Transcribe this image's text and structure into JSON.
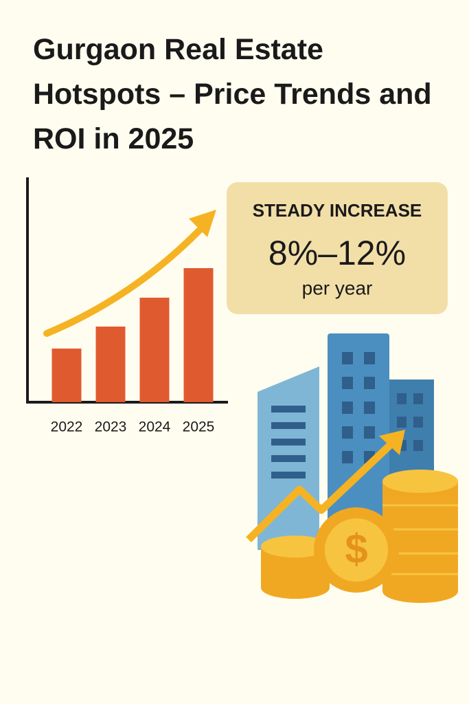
{
  "title": "Gurgaon Real Estate Hotspots – Price Trends and ROI in 2025",
  "chart_data": {
    "type": "bar",
    "categories": [
      "2022",
      "2023",
      "2024",
      "2025"
    ],
    "values": [
      78,
      110,
      152,
      195
    ],
    "color": "#e05a30",
    "ylim": [
      0,
      327
    ]
  },
  "callout": {
    "heading": "STEADY INCREASE",
    "range": "8%–12%",
    "unit": "per year"
  }
}
